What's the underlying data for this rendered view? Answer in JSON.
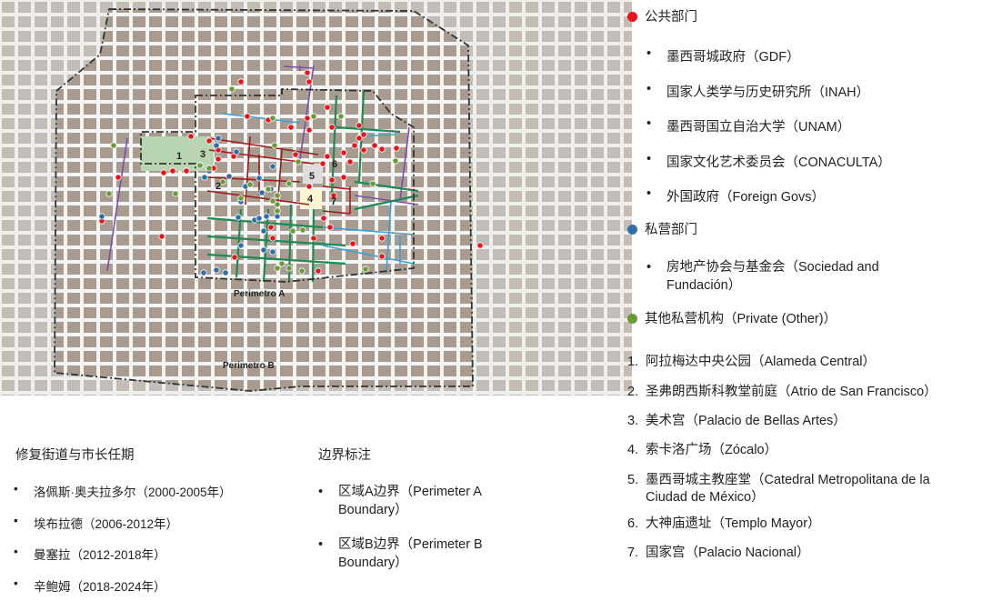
{
  "map": {
    "perimeter_a_label": "Perimetro A",
    "perimeter_b_label": "Perimetro B",
    "site_numbers": [
      "1",
      "2",
      "3",
      "4",
      "5",
      "6",
      "7"
    ]
  },
  "colors": {
    "public": "#e8141c",
    "private": "#2f6ea6",
    "other_private": "#6a9a3a",
    "street_purple": "#7b4fb0",
    "street_blue": "#3aa0d8",
    "street_red": "#9e1c1c",
    "street_green": "#1f8a55"
  },
  "legend": {
    "public": {
      "label": "公共部门",
      "items": [
        "墨西哥城政府（GDF）",
        "国家人类学与历史研究所（INAH）",
        "墨西哥国立自治大学（UNAM）",
        "国家文化艺术委员会（CONACULTA）",
        "外国政府（Foreign Govs）"
      ]
    },
    "private": {
      "label": "私营部门",
      "items": [
        "房地产协会与基金会（Sociedad and Fundación）"
      ]
    },
    "other": {
      "label": "其他私营机构（Private (Other)）"
    },
    "sites": [
      "阿拉梅达中央公园（Alameda Central）",
      "圣弗朗西斯科教堂前庭（Atrio de San Francisco）",
      "美术宫（Palacio de Bellas Artes）",
      "索卡洛广场（Zócalo）",
      "墨西哥城主教座堂（Catedral Metropolitana de la Ciudad de México）",
      "大神庙遗址（Templo Mayor）",
      "国家宫（Palacio Nacional）"
    ]
  },
  "streets": {
    "title": "修复街道与市长任期",
    "items": [
      "洛佩斯·奥夫拉多尔（2000-2005年）",
      "埃布拉德（2006-2012年）",
      "曼塞拉（2012-2018年）",
      "辛鲍姆（2018-2024年）"
    ]
  },
  "boundaries": {
    "title": "边界标注",
    "items": [
      "区域A边界（Perimeter A Boundary）",
      "区域B边界（Perimeter B Boundary）"
    ]
  }
}
